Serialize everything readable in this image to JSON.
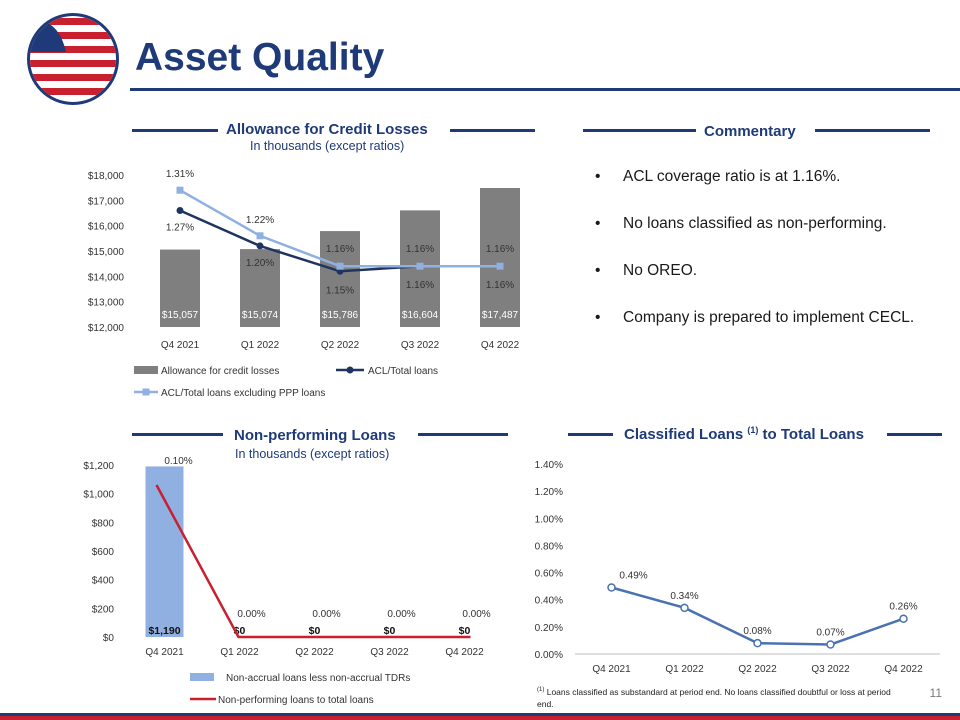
{
  "header": {
    "title": "Asset Quality"
  },
  "colors": {
    "navy": "#1f3a78",
    "red": "#c8202f",
    "gray_bar": "#7f7f7f",
    "light_blue": "#8fb0e0",
    "dark_navy_line": "#1f3560",
    "line_blue": "#4a72b0"
  },
  "sections": {
    "acl": {
      "title": "Allowance for Credit Losses",
      "subtitle": "In thousands (except ratios)"
    },
    "commentary": {
      "title": "Commentary"
    },
    "npl": {
      "title": "Non-performing Loans",
      "subtitle": "In thousands (except ratios)"
    },
    "classified": {
      "title_main": "Classified Loans ",
      "title_sup": "(1)",
      "title_end": " to Total Loans"
    }
  },
  "commentary": [
    {
      "bullet": "•",
      "text": "ACL coverage ratio is at 1.16%."
    },
    {
      "bullet": "•",
      "text": "No loans classified as non-performing."
    },
    {
      "bullet": "•",
      "text": "No OREO."
    },
    {
      "bullet": "•",
      "text": "Company is prepared to implement CECL."
    }
  ],
  "footnote": {
    "marker": "(1)",
    "text": "Loans classified as substandard at period end. No loans classified doubtful or loss at period end."
  },
  "page_number": "11",
  "chart_data": [
    {
      "id": "acl",
      "type": "bar",
      "categories": [
        "Q4 2021",
        "Q1 2022",
        "Q2 2022",
        "Q3 2022",
        "Q4 2022"
      ],
      "series": [
        {
          "name": "Allowance for credit losses",
          "kind": "bar",
          "values": [
            15057,
            15074,
            15786,
            16604,
            17487
          ],
          "labels": [
            "$15,057",
            "$15,074",
            "$15,786",
            "$16,604",
            "$17,487"
          ]
        },
        {
          "name": "ACL/Total loans",
          "kind": "line",
          "axis": "secondary",
          "values": [
            1.27,
            1.2,
            1.15,
            1.16,
            1.16
          ],
          "labels": [
            "1.27%",
            "1.20%",
            "1.15%",
            "1.16%",
            "1.16%"
          ]
        },
        {
          "name": "ACL/Total loans excluding PPP loans",
          "kind": "line",
          "axis": "secondary",
          "values": [
            1.31,
            1.22,
            1.16,
            1.16,
            1.16
          ],
          "labels": [
            "1.31%",
            "1.22%",
            "1.16%",
            "1.16%",
            "1.16%"
          ]
        }
      ],
      "y_ticks": [
        "$18,000",
        "$17,000",
        "$16,000",
        "$15,000",
        "$14,000",
        "$13,000",
        "$12,000"
      ],
      "ylim": [
        12000,
        18000
      ],
      "legend": "bottom"
    },
    {
      "id": "npl",
      "type": "bar",
      "categories": [
        "Q4 2021",
        "Q1 2022",
        "Q2 2022",
        "Q3 2022",
        "Q4 2022"
      ],
      "series": [
        {
          "name": "Non-accrual loans less non-accrual TDRs",
          "kind": "bar",
          "values": [
            1190,
            0,
            0,
            0,
            0
          ],
          "labels": [
            "$1,190",
            "$0",
            "$0",
            "$0",
            "$0"
          ]
        },
        {
          "name": "Non-performing loans to total loans",
          "kind": "line",
          "axis": "secondary",
          "values": [
            0.1,
            0.0,
            0.0,
            0.0,
            0.0
          ],
          "labels": [
            "0.10%",
            "0.00%",
            "0.00%",
            "0.00%",
            "0.00%"
          ]
        }
      ],
      "y_ticks": [
        "$1,200",
        "$1,000",
        "$800",
        "$600",
        "$400",
        "$200",
        "$0"
      ],
      "ylim": [
        0,
        1200
      ],
      "legend": "bottom"
    },
    {
      "id": "classified",
      "type": "line",
      "categories": [
        "Q4 2021",
        "Q1 2022",
        "Q2 2022",
        "Q3 2022",
        "Q4 2022"
      ],
      "series": [
        {
          "kind": "line",
          "values": [
            0.49,
            0.34,
            0.08,
            0.07,
            0.26
          ],
          "labels": [
            "0.49%",
            "0.34%",
            "0.08%",
            "0.07%",
            "0.26%"
          ]
        }
      ],
      "y_ticks": [
        "1.40%",
        "1.20%",
        "1.00%",
        "0.80%",
        "0.60%",
        "0.40%",
        "0.20%",
        "0.00%"
      ],
      "ylim": [
        0,
        1.4
      ],
      "grid": false
    }
  ]
}
